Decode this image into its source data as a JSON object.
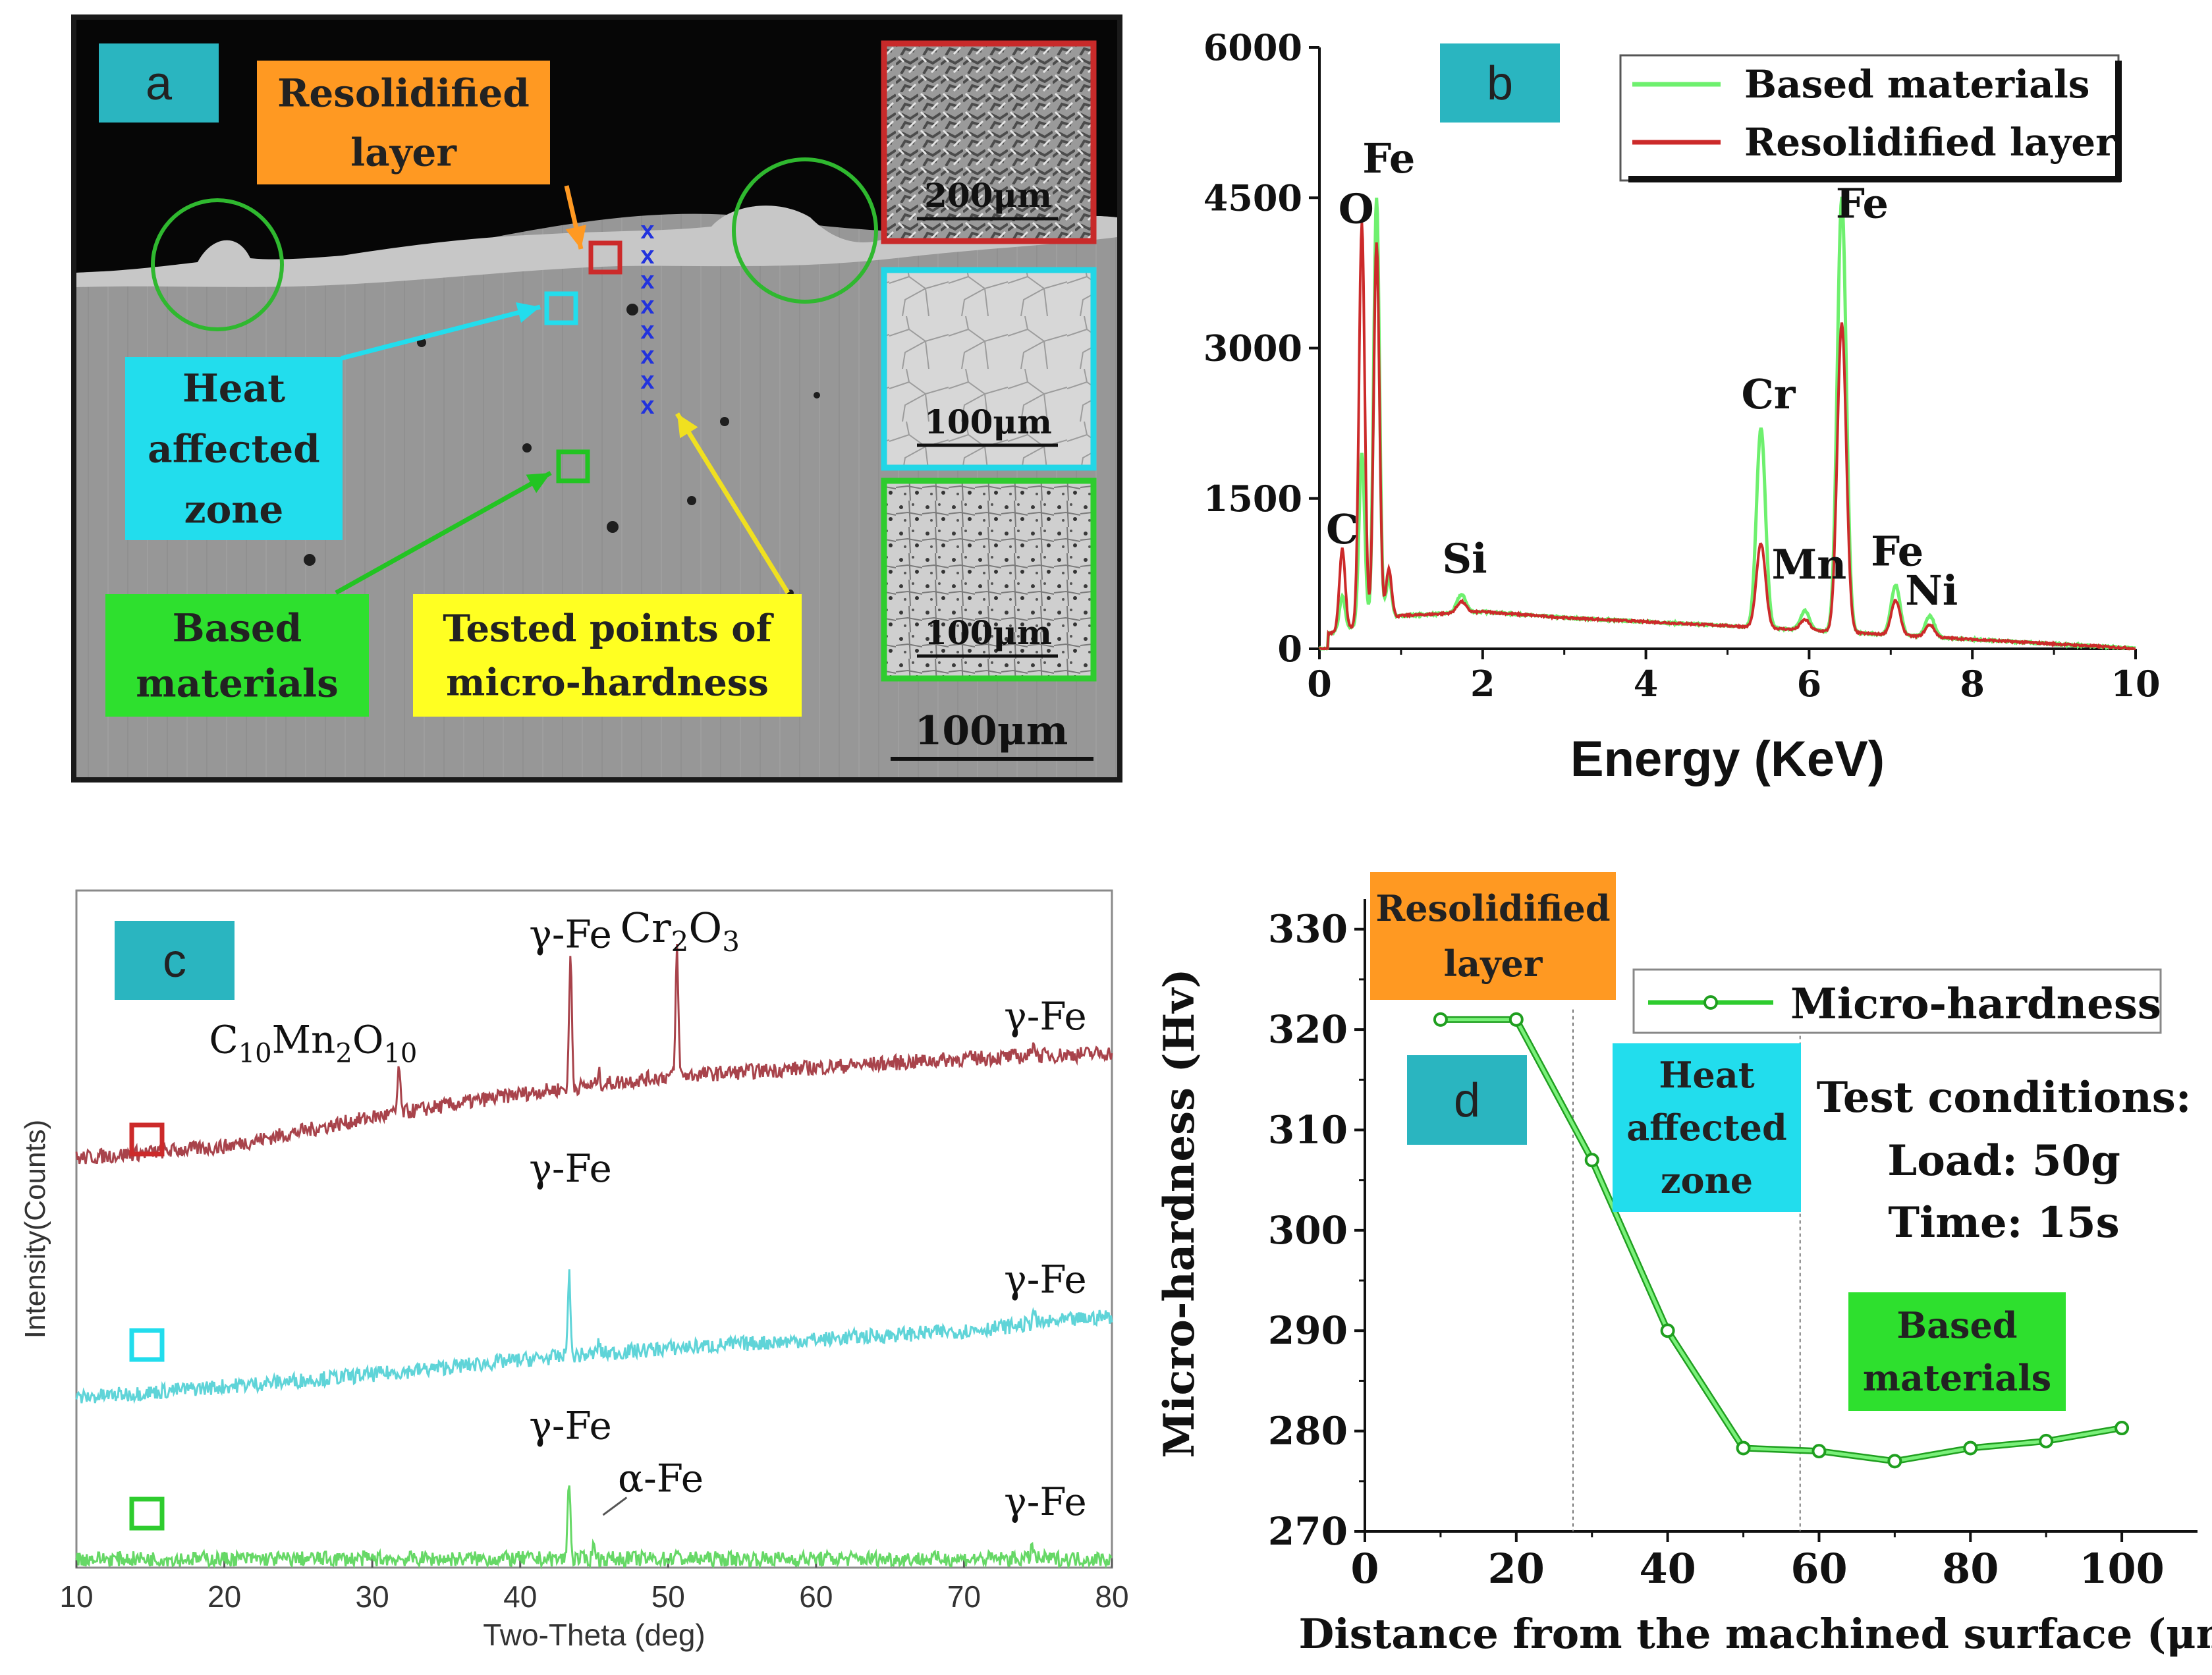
{
  "colors": {
    "based": "#2ecc2e",
    "based_light": "#6ef06e",
    "resolidified": "#cc2a2a",
    "haz": "#22dded",
    "orange": "#ff9922",
    "yellow": "#ffff22",
    "teal_badge": "#2ab5c0",
    "xrd_top": "#a8434b",
    "xrd_mid": "#5fd4d8",
    "xrd_bot": "#66d866",
    "points_blue": "#2233dd"
  },
  "panel_a": {
    "label": "a",
    "resolidified_label": [
      "Resolidified",
      "layer"
    ],
    "haz_label": [
      "Heat",
      "affected",
      "zone"
    ],
    "based_label": [
      "Based",
      "materials"
    ],
    "points_label": [
      "Tested points of",
      "micro-hardness"
    ],
    "test_point_marker": "x",
    "test_point_count": 8,
    "inset_scales": [
      "200μm",
      "100μm",
      "100μm"
    ],
    "main_scale": "100μm"
  },
  "chart_data": [
    {
      "panel": "b",
      "type": "line",
      "title": "",
      "xlabel": "Energy (KeV)",
      "ylabel": "",
      "xlim": [
        0,
        10
      ],
      "ylim": [
        0,
        6000
      ],
      "xticks": [
        "0",
        "2",
        "4",
        "6",
        "8",
        "10"
      ],
      "yticks": [
        "0",
        "1500",
        "3000",
        "4500",
        "6000"
      ],
      "legend": "top-right",
      "series": [
        {
          "name": "Based materials",
          "color": "#6ef06e",
          "peaks": [
            [
              0.28,
              520
            ],
            [
              0.52,
              1950
            ],
            [
              0.7,
              4500
            ],
            [
              0.85,
              700
            ],
            [
              1.74,
              540
            ],
            [
              5.41,
              2200
            ],
            [
              5.95,
              380
            ],
            [
              6.4,
              4500
            ],
            [
              7.06,
              640
            ],
            [
              7.48,
              330
            ]
          ]
        },
        {
          "name": "Resolidified layer",
          "color": "#cc2a2a",
          "peaks": [
            [
              0.28,
              1000
            ],
            [
              0.52,
              4250
            ],
            [
              0.7,
              4050
            ],
            [
              0.85,
              800
            ],
            [
              1.74,
              470
            ],
            [
              5.41,
              1050
            ],
            [
              5.95,
              290
            ],
            [
              6.4,
              3250
            ],
            [
              7.06,
              480
            ],
            [
              7.48,
              240
            ]
          ]
        }
      ],
      "annotations": [
        {
          "text": "C",
          "x": 0.28,
          "y": 1050
        },
        {
          "text": "O",
          "x": 0.45,
          "y": 4250
        },
        {
          "text": "Fe",
          "x": 0.85,
          "y": 4750
        },
        {
          "text": "Si",
          "x": 1.78,
          "y": 760
        },
        {
          "text": "Cr",
          "x": 5.5,
          "y": 2400
        },
        {
          "text": "Mn",
          "x": 6.0,
          "y": 700
        },
        {
          "text": "Fe",
          "x": 6.65,
          "y": 4300
        },
        {
          "text": "Fe",
          "x": 7.08,
          "y": 830
        },
        {
          "text": "Ni",
          "x": 7.5,
          "y": 440
        }
      ]
    },
    {
      "panel": "c",
      "type": "line",
      "title": "",
      "xlabel": "Two-Theta (deg)",
      "ylabel": "Intensity(Counts)",
      "xlim": [
        10,
        80
      ],
      "ylim": [
        0,
        100
      ],
      "xticks": [
        "10",
        "20",
        "30",
        "40",
        "50",
        "60",
        "70",
        "80"
      ],
      "series": [
        {
          "name": "Resolidified layer",
          "color": "#a8434b",
          "baseline": [
            [
              10,
              70
            ],
            [
              20,
              72
            ],
            [
              30,
              77
            ],
            [
              40,
              81
            ],
            [
              50,
              84
            ],
            [
              60,
              85.5
            ],
            [
              70,
              87
            ],
            [
              80,
              88
            ]
          ],
          "peaks": [
            [
              31.8,
              8
            ],
            [
              43.4,
              23
            ],
            [
              45.3,
              2
            ],
            [
              50.6,
              22
            ],
            [
              74.7,
              3
            ]
          ]
        },
        {
          "name": "Heat affected zone",
          "color": "#5fd4d8",
          "baseline": [
            [
              10,
              29
            ],
            [
              20,
              31
            ],
            [
              30,
              33
            ],
            [
              40,
              35.5
            ],
            [
              50,
              37.5
            ],
            [
              60,
              39
            ],
            [
              70,
              40.5
            ],
            [
              80,
              43
            ]
          ],
          "peaks": [
            [
              43.3,
              14
            ],
            [
              45.3,
              2
            ],
            [
              74.7,
              2.5
            ]
          ]
        },
        {
          "name": "Based materials",
          "color": "#66d866",
          "baseline": [
            [
              10,
              1.5
            ],
            [
              80,
              1.5
            ]
          ],
          "peaks": [
            [
              43.3,
              14
            ],
            [
              45.0,
              3
            ],
            [
              50.5,
              1
            ],
            [
              74.6,
              2.5
            ]
          ]
        }
      ],
      "annotations": [
        {
          "text": "C10Mn2O10",
          "main": "C",
          "sub1": "10",
          "mid": "Mn",
          "sub2": "2",
          "end": "O",
          "sub3": "10",
          "x": 26,
          "y": 88
        },
        {
          "text": "γ-Fe",
          "x": 43.4,
          "y": 106
        },
        {
          "text": "Cr2O3",
          "main": "Cr",
          "sub": "2",
          "end": "O",
          "sub2": "3",
          "x": 50.8,
          "y": 107
        },
        {
          "text": "γ-Fe",
          "x": 75.5,
          "y": 92
        },
        {
          "text": "γ-Fe",
          "x": 43.4,
          "y": 66
        },
        {
          "text": "γ-Fe",
          "x": 75.5,
          "y": 47
        },
        {
          "text": "γ-Fe",
          "x": 43.4,
          "y": 22
        },
        {
          "text": "α-Fe",
          "x": 49.5,
          "y": 13
        },
        {
          "text": "γ-Fe",
          "x": 75.5,
          "y": 9
        }
      ]
    },
    {
      "panel": "d",
      "type": "line",
      "title": "",
      "xlabel": "Distance from the machined surface (μm)",
      "ylabel": "Micro-hardness (Hv)",
      "xlim": [
        0,
        110
      ],
      "ylim": [
        270,
        333
      ],
      "xticks": [
        "0",
        "20",
        "40",
        "60",
        "80",
        "100"
      ],
      "yticks": [
        "270",
        "280",
        "290",
        "300",
        "310",
        "320",
        "330"
      ],
      "legend": "top-right",
      "series": [
        {
          "name": "Micro-hardness",
          "color": "#2ecc2e",
          "x": [
            10,
            20,
            30,
            40,
            50,
            60,
            70,
            80,
            90,
            100
          ],
          "y": [
            321,
            321,
            307,
            290,
            278.3,
            278,
            277,
            278.3,
            279,
            280.3
          ]
        }
      ],
      "vlines": [
        27.5,
        57.5
      ],
      "labels": {
        "resolidified": [
          "Resolidified",
          "layer"
        ],
        "haz": [
          "Heat",
          "affected",
          "zone"
        ],
        "based": [
          "Based",
          "materials"
        ],
        "conditions": [
          "Test conditions:",
          "Load: 50g",
          "Time: 15s"
        ]
      }
    }
  ],
  "panel_labels": {
    "b": "b",
    "c": "c",
    "d": "d"
  }
}
